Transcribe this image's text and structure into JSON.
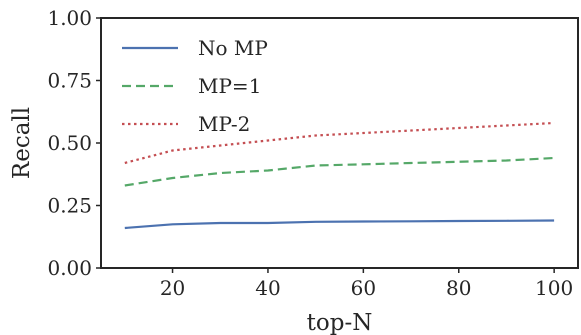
{
  "chart_data": {
    "type": "line",
    "xlabel": "top-N",
    "ylabel": "Recall",
    "xlim": [
      5,
      105
    ],
    "ylim": [
      0,
      1
    ],
    "x_ticks": [
      20,
      40,
      60,
      80,
      100
    ],
    "y_ticks": [
      "0.00",
      "0.25",
      "0.50",
      "0.75",
      "1.00"
    ],
    "grid": false,
    "legend_position": "top-left",
    "x": [
      10,
      20,
      30,
      40,
      50,
      60,
      70,
      80,
      90,
      100
    ],
    "series": [
      {
        "name": "No MP",
        "color": "#4c72b0",
        "style": "solid",
        "values": [
          0.16,
          0.175,
          0.18,
          0.18,
          0.185,
          0.186,
          0.187,
          0.188,
          0.189,
          0.19
        ]
      },
      {
        "name": "MP=1",
        "color": "#55a868",
        "style": "dashed",
        "values": [
          0.33,
          0.36,
          0.38,
          0.39,
          0.41,
          0.415,
          0.42,
          0.425,
          0.43,
          0.44
        ]
      },
      {
        "name": "MP-2",
        "color": "#c44e52",
        "style": "dotted",
        "values": [
          0.42,
          0.47,
          0.49,
          0.51,
          0.53,
          0.54,
          0.55,
          0.56,
          0.57,
          0.58
        ]
      }
    ]
  }
}
